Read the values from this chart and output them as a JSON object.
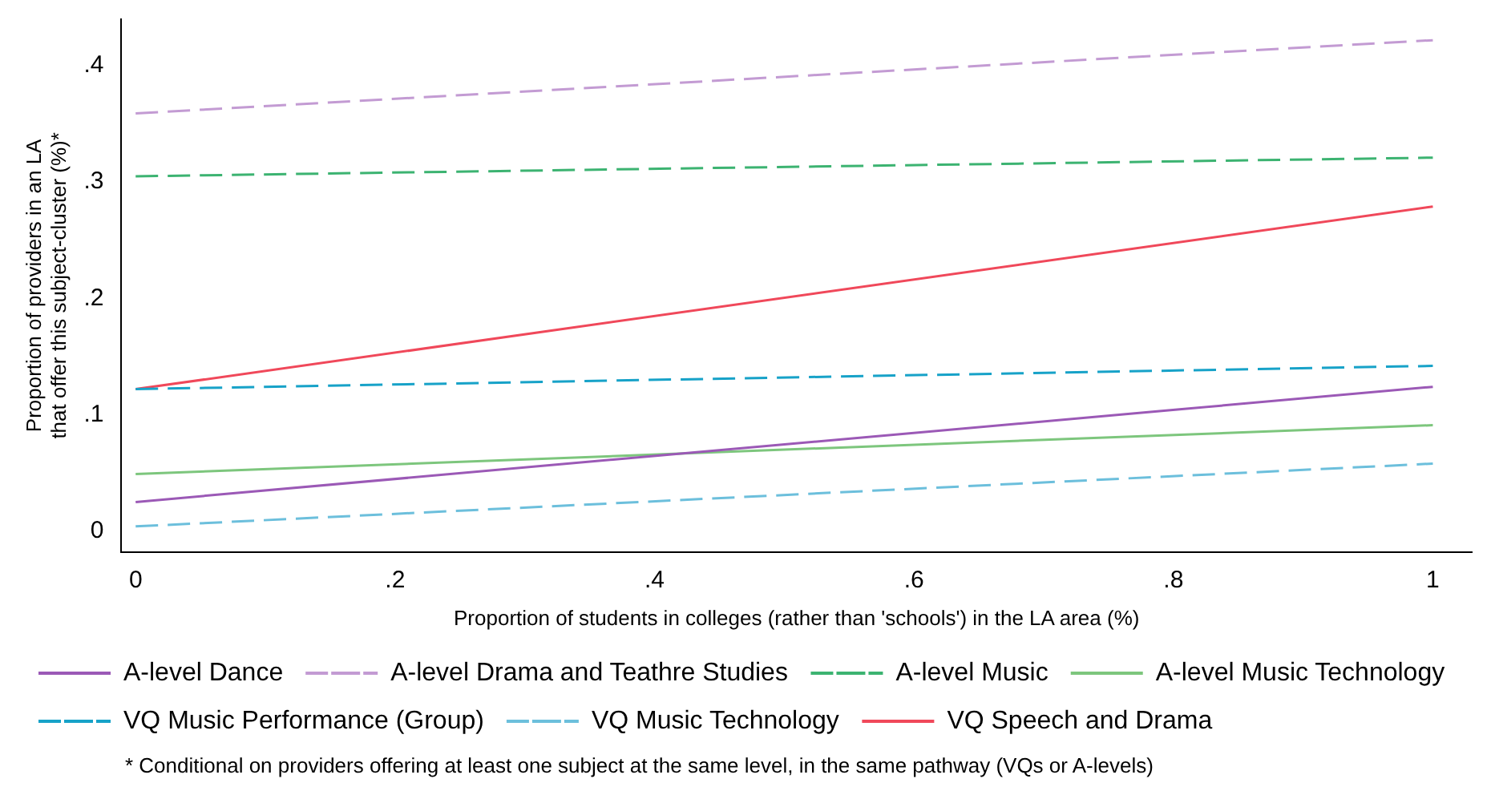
{
  "chart_data": {
    "type": "line",
    "xlabel": "Proportion of students in colleges (rather than 'schools') in the LA area (%)",
    "ylabel": "Proportion of providers in an LA that offer this subject-cluster (%)*",
    "x": [
      0,
      1
    ],
    "xlim": [
      -0.011,
      1.03
    ],
    "ylim": [
      -0.018,
      0.44
    ],
    "xticks": [
      {
        "value": 0,
        "label": "0"
      },
      {
        "value": 0.2,
        "label": ".2"
      },
      {
        "value": 0.4,
        "label": ".4"
      },
      {
        "value": 0.6,
        "label": ".6"
      },
      {
        "value": 0.8,
        "label": ".8"
      },
      {
        "value": 1,
        "label": "1"
      }
    ],
    "yticks": [
      {
        "value": 0,
        "label": "0"
      },
      {
        "value": 0.1,
        "label": ".1"
      },
      {
        "value": 0.2,
        "label": ".2"
      },
      {
        "value": 0.3,
        "label": ".3"
      },
      {
        "value": 0.4,
        "label": ".4"
      }
    ],
    "grid": false,
    "legend": "bottom",
    "marker": "none",
    "series": [
      {
        "name": "A-level Dance",
        "color": "#9b59b6",
        "values": [
          0.025,
          0.124
        ]
      },
      {
        "name": "A-level Drama and Teathre Studies",
        "color": "#c39bd3",
        "values": [
          0.359,
          0.422
        ],
        "line_style": "dashed"
      },
      {
        "name": "A-level Music",
        "color": "#3cb371",
        "values": [
          0.305,
          0.321
        ],
        "line_style": "dashed"
      },
      {
        "name": "A-level Music Technology",
        "color": "#7dc67d",
        "values": [
          0.049,
          0.091
        ]
      },
      {
        "name": "VQ Music Performance (Group)",
        "color": "#17a2c8",
        "values": [
          0.122,
          0.142
        ],
        "line_style": "dashed"
      },
      {
        "name": "VQ Music Technology",
        "color": "#6cbfdc",
        "values": [
          0.004,
          0.058
        ],
        "line_style": "dashed"
      },
      {
        "name": "VQ Speech and Drama",
        "color": "#f0485a",
        "values": [
          0.122,
          0.279
        ]
      }
    ],
    "annotations": [
      "* Conditional on providers offering at least one subject at the same level, in the same pathway (VQs or A-levels)"
    ]
  }
}
